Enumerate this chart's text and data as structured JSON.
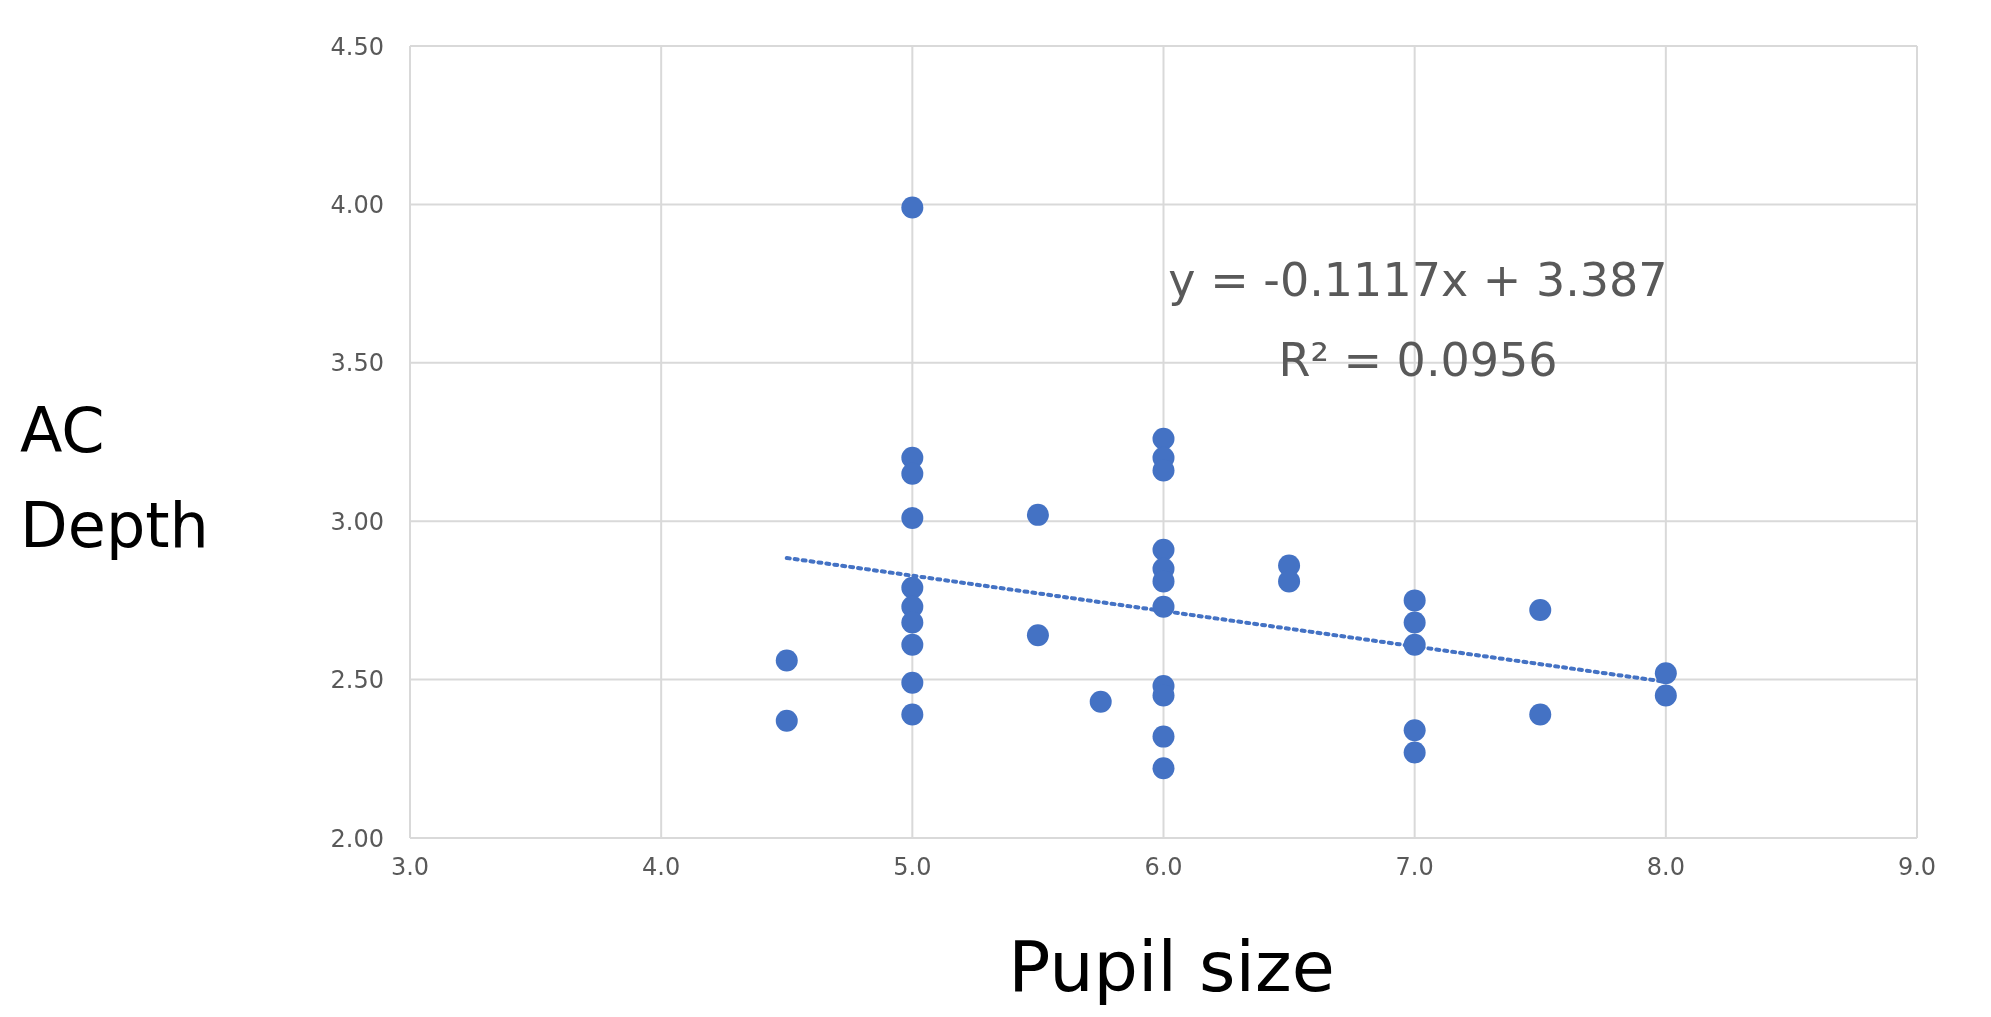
{
  "chart_data": {
    "type": "scatter",
    "xlabel": "Pupil size",
    "ylabel": "AC Depth",
    "xlim": [
      3,
      9
    ],
    "xticks": [
      {
        "value": 3,
        "label": "3.0"
      },
      {
        "value": 4,
        "label": "4.0"
      },
      {
        "value": 5,
        "label": "5.0"
      },
      {
        "value": 6,
        "label": "6.0"
      },
      {
        "value": 7,
        "label": "7.0"
      },
      {
        "value": 8,
        "label": "8.0"
      },
      {
        "value": 9,
        "label": "9.0"
      }
    ],
    "ylim": [
      2,
      4.5
    ],
    "yticks": [
      {
        "value": 2,
        "label": "2.00"
      },
      {
        "value": 2.5,
        "label": "2.50"
      },
      {
        "value": 3,
        "label": "3.00"
      },
      {
        "value": 3.5,
        "label": "3.50"
      },
      {
        "value": 4,
        "label": "4.00"
      },
      {
        "value": 4.5,
        "label": "4.50"
      }
    ],
    "grid": true,
    "marker": "circle",
    "series": [
      {
        "color": "#4472c4",
        "x": [
          4.5,
          4.5,
          5,
          5,
          5,
          5,
          5,
          5,
          5,
          5,
          5,
          5,
          5.5,
          5.5,
          5.75,
          6,
          6,
          6,
          6,
          6,
          6,
          6,
          6,
          6,
          6,
          6,
          6.5,
          6.5,
          7,
          7,
          7,
          7,
          7,
          7.5,
          7.5,
          8,
          8
        ],
        "values": [
          2.56,
          2.37,
          3.99,
          3.2,
          3.15,
          3.01,
          2.79,
          2.73,
          2.68,
          2.61,
          2.49,
          2.39,
          3.02,
          2.64,
          2.43,
          3.26,
          3.2,
          3.16,
          2.91,
          2.85,
          2.81,
          2.73,
          2.48,
          2.45,
          2.32,
          2.22,
          2.86,
          2.81,
          2.75,
          2.68,
          2.61,
          2.34,
          2.27,
          2.72,
          2.39,
          2.52,
          2.45
        ]
      },
      {
        "type": "line",
        "color": "#4472c4",
        "x": [
          4.5,
          8
        ],
        "values": [
          2.884,
          2.493
        ],
        "line_style": "dotted",
        "marker": "none"
      }
    ],
    "annotations": [
      "y = -0.1117x + 3.387",
      "R² = 0.0956"
    ]
  }
}
